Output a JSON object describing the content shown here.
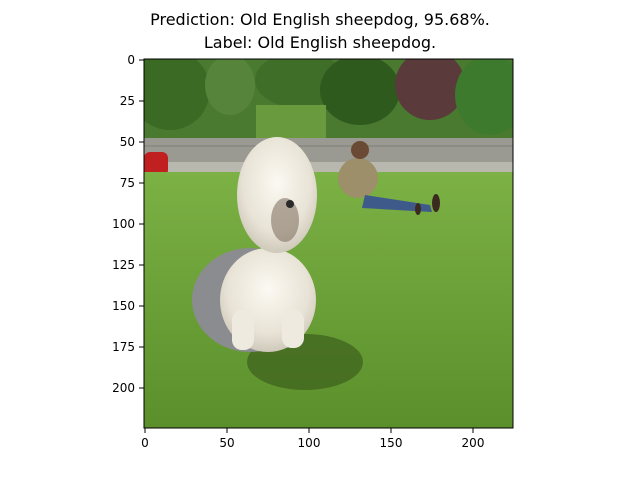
{
  "figure": {
    "title_line1": "Prediction: Old English sheepdog, 95.68%.",
    "title_line2": "Label: Old English sheepdog.",
    "x_ticks": [
      "0",
      "50",
      "100",
      "150",
      "200"
    ],
    "y_ticks": [
      "0",
      "25",
      "50",
      "75",
      "100",
      "125",
      "150",
      "175",
      "200"
    ],
    "image_description_icon": "photo-sheepdog-on-grass",
    "colors": {
      "sky": "#cfe3f2",
      "trees": "#3f6b2a",
      "grass": "#6fa63a",
      "wall": "#9a9a92",
      "dog_fur": "#eeeae0",
      "dog_grey": "#8a8c90",
      "car": "#c02020",
      "person_shirt": "#9c8f6a",
      "person_jeans": "#3e5a8a"
    }
  }
}
